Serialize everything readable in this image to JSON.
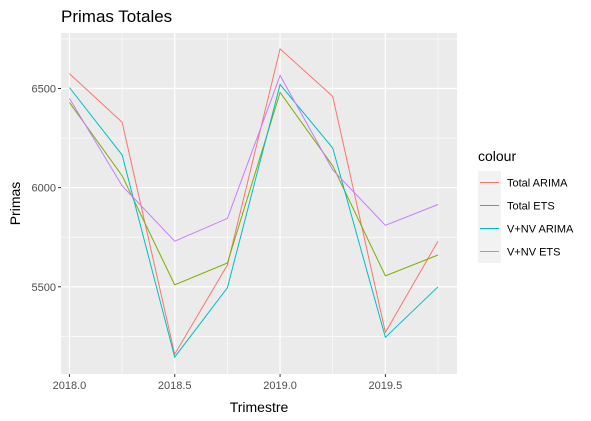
{
  "chart_data": {
    "type": "line",
    "title": "Primas Totales",
    "xlabel": "Trimestre",
    "ylabel": "Primas",
    "x": [
      2018.0,
      2018.25,
      2018.5,
      2018.75,
      2019.0,
      2019.25,
      2019.5,
      2019.75
    ],
    "xlim": [
      2017.96,
      2019.84
    ],
    "ylim": [
      5060,
      6780
    ],
    "x_ticks": [
      2018.0,
      2018.5,
      2019.0,
      2019.5
    ],
    "x_tick_labels": [
      "2018.0",
      "2018.5",
      "2019.0",
      "2019.5"
    ],
    "y_ticks": [
      5500,
      6000,
      6500
    ],
    "y_tick_labels": [
      "5500",
      "6000",
      "6500"
    ],
    "grid": true,
    "legend_position": "right",
    "legend_title": "colour",
    "series": [
      {
        "name": "Total ARIMA",
        "color": "#F8766D",
        "values": [
          6575,
          6330,
          5160,
          5610,
          6700,
          6460,
          5270,
          5730
        ]
      },
      {
        "name": "Total ETS",
        "color": "#7CAE00",
        "values": [
          6430,
          6060,
          5510,
          5620,
          6480,
          6110,
          5555,
          5660
        ]
      },
      {
        "name": "V+NV ARIMA",
        "color": "#00BFC4",
        "values": [
          6505,
          6165,
          5145,
          5495,
          6520,
          6200,
          5245,
          5500
        ]
      },
      {
        "name": "V+NV ETS",
        "color": "#C77CFF",
        "values": [
          6450,
          6010,
          5730,
          5845,
          6565,
          6090,
          5810,
          5915
        ]
      }
    ]
  }
}
